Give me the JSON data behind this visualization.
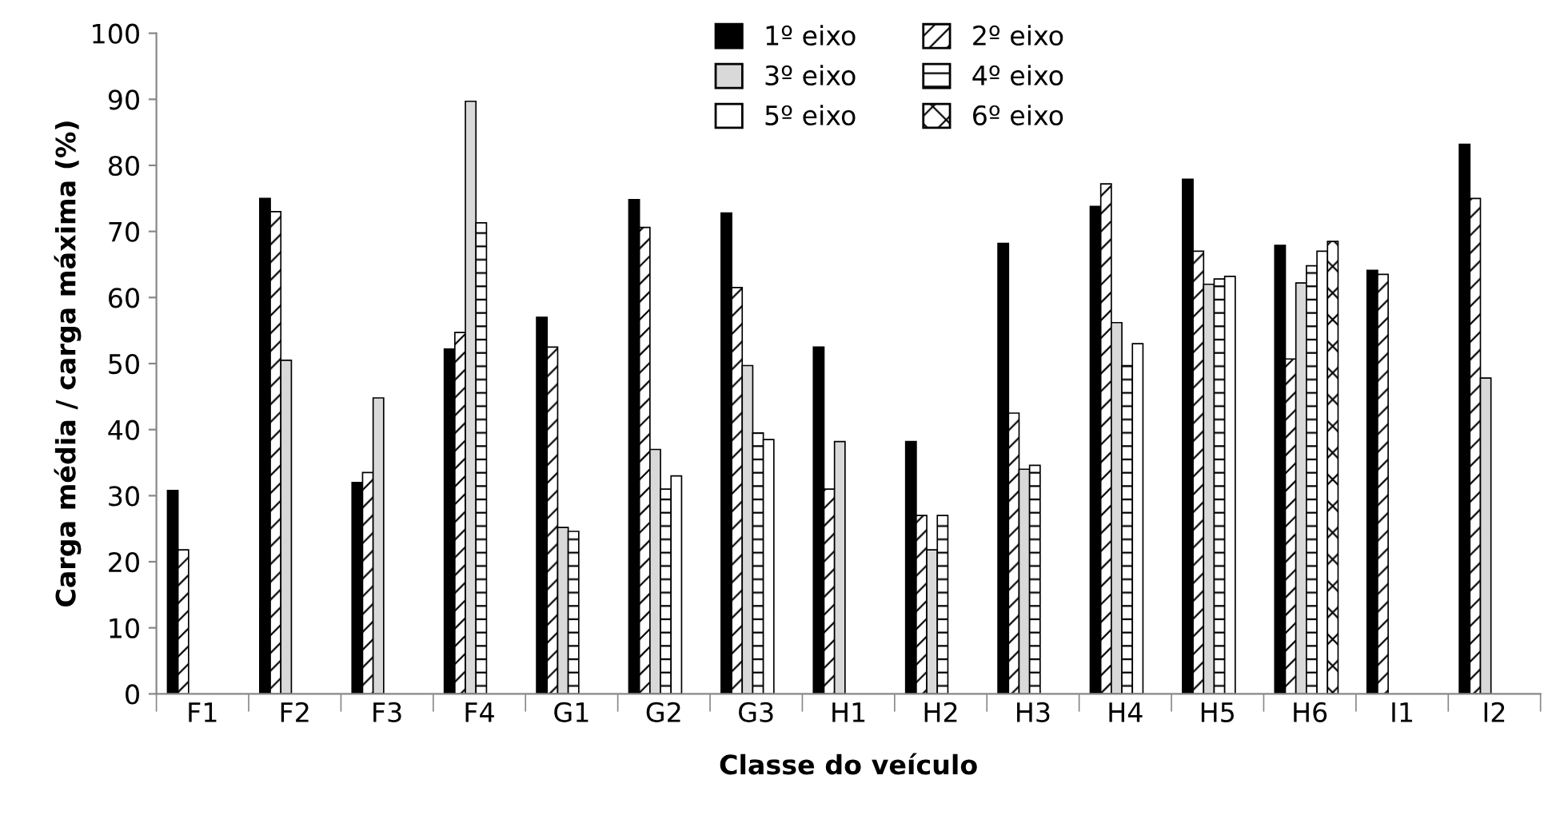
{
  "chart_data": {
    "type": "bar",
    "xlabel": "Classe do veículo",
    "ylabel": "Carga média / carga máxima (%)",
    "categories": [
      "F1",
      "F2",
      "F3",
      "F4",
      "G1",
      "G2",
      "G3",
      "H1",
      "H2",
      "H3",
      "H4",
      "H5",
      "H6",
      "I1",
      "I2"
    ],
    "series": [
      {
        "name": "1º eixo",
        "color": "#000000",
        "values": [
          30.8,
          75,
          32,
          52.2,
          57,
          74.8,
          72.8,
          52.5,
          38.2,
          68.2,
          73.8,
          77.9,
          67.9,
          64.1,
          83.2
        ]
      },
      {
        "name": "2º eixo",
        "color": "#000000",
        "values": [
          21.8,
          73,
          33.5,
          54.7,
          52.5,
          70.6,
          61.5,
          31,
          27,
          42.5,
          77.2,
          67,
          50.7,
          63.5,
          75
        ]
      },
      {
        "name": "3º eixo",
        "color": "#d9d9d9",
        "values": [
          null,
          50.5,
          44.8,
          89.7,
          25.2,
          37,
          49.7,
          38.2,
          21.8,
          34,
          56.2,
          62,
          62.2,
          null,
          47.8
        ]
      },
      {
        "name": "4º eixo",
        "color": "#000000",
        "values": [
          null,
          null,
          null,
          71.3,
          24.6,
          31,
          39.5,
          null,
          27,
          34.6,
          49.7,
          62.8,
          64.8,
          null,
          null
        ]
      },
      {
        "name": "5º eixo",
        "color": "#ffffff",
        "values": [
          null,
          null,
          null,
          null,
          null,
          33,
          38.5,
          null,
          null,
          null,
          53,
          63.2,
          67,
          null,
          null
        ]
      },
      {
        "name": "6º eixo",
        "color": "#000000",
        "values": [
          null,
          null,
          null,
          null,
          null,
          null,
          null,
          null,
          null,
          null,
          null,
          null,
          68.5,
          null,
          null
        ]
      }
    ],
    "ylim": [
      0,
      100
    ],
    "yticks": [
      0,
      10,
      20,
      30,
      40,
      50,
      60,
      70,
      80,
      90,
      100
    ],
    "grid": false,
    "legend": "top"
  }
}
